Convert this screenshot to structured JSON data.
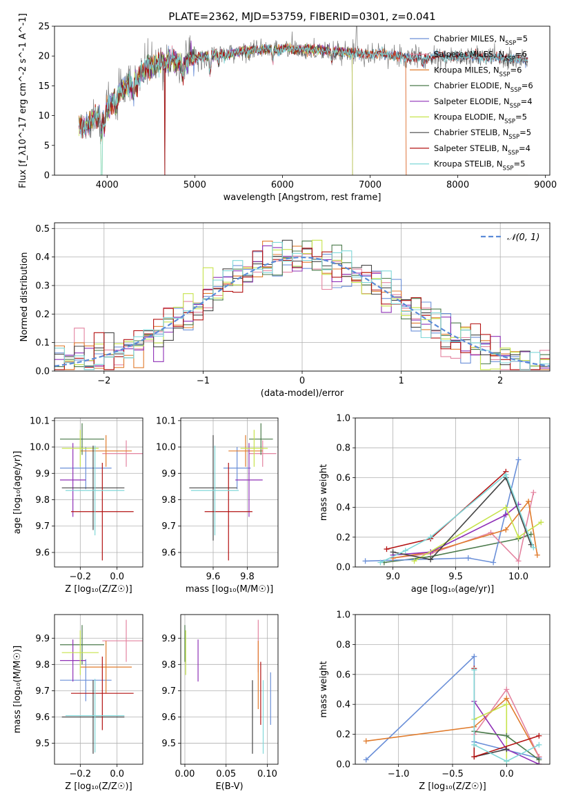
{
  "colors": {
    "Chabrier MILES": "#6a8fd8",
    "Salpeter MILES": "#e3829f",
    "Kroupa MILES": "#e07b2c",
    "Chabrier ELODIE": "#4a7a4a",
    "Salpeter ELODIE": "#8e2fb6",
    "Kroupa ELODIE": "#c6e34a",
    "Chabrier STELIB": "#444444",
    "Salpeter STELIB": "#b31010",
    "Kroupa STELIB": "#7fd7d8",
    "normal": "#5b8bd8",
    "grid": "#b0b0b0"
  },
  "chart_data": [
    {
      "id": "spectrum",
      "type": "line",
      "title": "PLATE=2362, MJD=53759, FIBERID=0301, z=0.041",
      "xlabel": "wavelength [Angstrom, rest frame]",
      "ylabel": "Flux [f_λ10^-17 erg cm^-2 s^-1 A^-1]",
      "xlim": [
        3400,
        9050
      ],
      "ylim": [
        0,
        25
      ],
      "xticks": [
        4000,
        5000,
        6000,
        7000,
        8000,
        9000
      ],
      "yticks": [
        0,
        5,
        10,
        15,
        20,
        25
      ],
      "grid": false,
      "legend_position": "top-right",
      "legend": [
        {
          "label": "Chabrier MILES, N",
          "sub": "SSP",
          "suffix": "=5"
        },
        {
          "label": "Salpeter MILES, N",
          "sub": "SSP",
          "suffix": "=6"
        },
        {
          "label": "Kroupa MILES, N",
          "sub": "SSP",
          "suffix": "=6"
        },
        {
          "label": "Chabrier ELODIE, N",
          "sub": "SSP",
          "suffix": "=6"
        },
        {
          "label": "Salpeter ELODIE, N",
          "sub": "SSP",
          "suffix": "=4"
        },
        {
          "label": "Kroupa ELODIE, N",
          "sub": "SSP",
          "suffix": "=5"
        },
        {
          "label": "Chabrier STELIB, N",
          "sub": "SSP",
          "suffix": "=5"
        },
        {
          "label": "Salpeter STELIB, N",
          "sub": "SSP",
          "suffix": "=4"
        },
        {
          "label": "Kroupa STELIB, N",
          "sub": "SSP",
          "suffix": "=5"
        }
      ],
      "continuum": [
        [
          3680,
          8.5
        ],
        [
          3750,
          8.0
        ],
        [
          3850,
          9.5
        ],
        [
          3950,
          10.5
        ],
        [
          4050,
          12.0
        ],
        [
          4150,
          14.0
        ],
        [
          4250,
          15.0
        ],
        [
          4350,
          16.5
        ],
        [
          4450,
          18.0
        ],
        [
          4550,
          18.5
        ],
        [
          4650,
          19.0
        ],
        [
          4750,
          19.5
        ],
        [
          4850,
          18.5
        ],
        [
          4950,
          19.5
        ],
        [
          5050,
          19.8
        ],
        [
          5150,
          20.0
        ],
        [
          5250,
          20.5
        ],
        [
          5350,
          20.0
        ],
        [
          5450,
          20.5
        ],
        [
          5550,
          20.8
        ],
        [
          5650,
          21.0
        ],
        [
          5750,
          21.0
        ],
        [
          5850,
          21.2
        ],
        [
          5950,
          21.0
        ],
        [
          6050,
          21.3
        ],
        [
          6150,
          21.0
        ],
        [
          6250,
          21.2
        ],
        [
          6350,
          21.0
        ],
        [
          6450,
          21.0
        ],
        [
          6550,
          20.8
        ],
        [
          6650,
          20.7
        ],
        [
          6750,
          20.5
        ],
        [
          6850,
          20.5
        ],
        [
          6950,
          20.3
        ],
        [
          7050,
          20.3
        ],
        [
          7150,
          20.5
        ],
        [
          7250,
          20.0
        ],
        [
          7350,
          20.0
        ],
        [
          7450,
          19.6
        ],
        [
          7550,
          19.8
        ],
        [
          7650,
          19.6
        ],
        [
          7750,
          20.3
        ],
        [
          7850,
          19.8
        ],
        [
          7950,
          19.8
        ],
        [
          8050,
          19.8
        ],
        [
          8150,
          20.0
        ],
        [
          8250,
          19.8
        ],
        [
          8350,
          19.9
        ],
        [
          8450,
          19.7
        ],
        [
          8550,
          19.5
        ],
        [
          8650,
          19.5
        ],
        [
          8800,
          19.3
        ]
      ]
    },
    {
      "id": "residuals",
      "type": "histogram",
      "xlabel": "(data-model)/error",
      "ylabel": "Normed distribution",
      "xlim": [
        -2.5,
        2.5
      ],
      "ylim": [
        0,
        0.52
      ],
      "xticks": [
        -2,
        -1,
        0,
        1,
        2
      ],
      "yticks": [
        0.0,
        0.1,
        0.2,
        0.3,
        0.4,
        0.5
      ],
      "grid": true,
      "bins": {
        "start": -2.5,
        "width": 0.1,
        "count": 50
      },
      "legend_position": "top-right",
      "legend": [
        {
          "label": "𝒩(0, 1)",
          "style": "dashed"
        }
      ],
      "reference_curve": "normal(0,1)"
    },
    {
      "id": "Z_age",
      "type": "errorbar",
      "xlabel": "Z [log₁₀(Z/Z☉)]",
      "ylabel": "age  [log₁₀(age/yr)]",
      "xlim": [
        -0.34,
        0.14
      ],
      "ylim": [
        9.545,
        10.11
      ],
      "xticks": [
        -0.2,
        0.0
      ],
      "yticks": [
        9.6,
        9.7,
        9.8,
        9.9,
        10.0,
        10.1
      ],
      "grid": true,
      "points": [
        {
          "model": "Chabrier MILES",
          "x": -0.17,
          "xerr": 0.14,
          "y": 9.92,
          "yerr": 0.08
        },
        {
          "model": "Salpeter MILES",
          "x": 0.05,
          "xerr": 0.13,
          "y": 9.975,
          "yerr": 0.05
        },
        {
          "model": "Kroupa MILES",
          "x": -0.06,
          "xerr": 0.14,
          "y": 9.985,
          "yerr": 0.06
        },
        {
          "model": "Chabrier ELODIE",
          "x": -0.19,
          "xerr": 0.12,
          "y": 10.03,
          "yerr": 0.06
        },
        {
          "model": "Salpeter ELODIE",
          "x": -0.24,
          "xerr": 0.07,
          "y": 9.875,
          "yerr": 0.14
        },
        {
          "model": "Kroupa ELODIE",
          "x": -0.2,
          "xerr": 0.1,
          "y": 9.995,
          "yerr": 0.07
        },
        {
          "model": "Chabrier STELIB",
          "x": -0.13,
          "xerr": 0.17,
          "y": 9.845,
          "yerr": 0.16
        },
        {
          "model": "Salpeter STELIB",
          "x": -0.08,
          "xerr": 0.17,
          "y": 9.755,
          "yerr": 0.185
        },
        {
          "model": "Kroupa STELIB",
          "x": -0.12,
          "xerr": 0.16,
          "y": 9.835,
          "yerr": 0.17
        }
      ]
    },
    {
      "id": "mass_age",
      "type": "errorbar",
      "xlabel": "mass [log₁₀(M/M☉)]",
      "ylabel": "",
      "xlim": [
        9.41,
        9.98
      ],
      "ylim": [
        9.545,
        10.11
      ],
      "xticks": [
        9.6,
        9.8
      ],
      "yticks": [
        9.6,
        9.7,
        9.8,
        9.9,
        10.0,
        10.1
      ],
      "grid": true,
      "points": [
        {
          "model": "Chabrier MILES",
          "x": 9.74,
          "xerr": 0.08,
          "y": 9.92,
          "yerr": 0.08
        },
        {
          "model": "Salpeter MILES",
          "x": 9.89,
          "xerr": 0.08,
          "y": 9.975,
          "yerr": 0.05
        },
        {
          "model": "Kroupa MILES",
          "x": 9.79,
          "xerr": 0.1,
          "y": 9.985,
          "yerr": 0.06
        },
        {
          "model": "Chabrier ELODIE",
          "x": 9.88,
          "xerr": 0.07,
          "y": 10.03,
          "yerr": 0.06
        },
        {
          "model": "Salpeter ELODIE",
          "x": 9.81,
          "xerr": 0.08,
          "y": 9.875,
          "yerr": 0.14
        },
        {
          "model": "Kroupa ELODIE",
          "x": 9.84,
          "xerr": 0.08,
          "y": 9.995,
          "yerr": 0.07
        },
        {
          "model": "Chabrier STELIB",
          "x": 9.6,
          "xerr": 0.14,
          "y": 9.845,
          "yerr": 0.2
        },
        {
          "model": "Salpeter STELIB",
          "x": 9.69,
          "xerr": 0.14,
          "y": 9.755,
          "yerr": 0.185
        },
        {
          "model": "Kroupa STELIB",
          "x": 9.61,
          "xerr": 0.14,
          "y": 9.835,
          "yerr": 0.17
        }
      ]
    },
    {
      "id": "age_weight",
      "type": "line",
      "xlabel": "age  [log₁₀(age/yr)]",
      "ylabel": "mass weight",
      "xlim": [
        8.7,
        10.25
      ],
      "ylim": [
        0,
        1.0
      ],
      "xticks": [
        9.0,
        9.5,
        10.0
      ],
      "yticks": [
        0.0,
        0.2,
        0.4,
        0.6,
        0.8,
        1.0
      ],
      "grid": true,
      "series": [
        {
          "model": "Chabrier ELODIE",
          "x": [
            8.93,
            9.3,
            10.0,
            10.1
          ],
          "y": [
            0.03,
            0.07,
            0.19,
            0.22
          ]
        },
        {
          "model": "Chabrier MILES",
          "x": [
            8.78,
            9.6,
            9.8,
            10.0
          ],
          "y": [
            0.04,
            0.06,
            0.03,
            0.72
          ]
        },
        {
          "model": "Salpeter MILES",
          "x": [
            9.0,
            9.3,
            9.78,
            10.0,
            10.12
          ],
          "y": [
            0.06,
            0.09,
            0.23,
            0.04,
            0.5
          ]
        },
        {
          "model": "Kroupa MILES",
          "x": [
            9.0,
            9.3,
            9.9,
            10.08,
            10.15
          ],
          "y": [
            0.06,
            0.1,
            0.25,
            0.44,
            0.08
          ]
        },
        {
          "model": "Salpeter ELODIE",
          "x": [
            9.0,
            9.3,
            9.9,
            10.0
          ],
          "y": [
            0.08,
            0.1,
            0.35,
            0.42
          ]
        },
        {
          "model": "Kroupa ELODIE",
          "x": [
            9.17,
            9.9,
            10.0,
            10.18
          ],
          "y": [
            0.04,
            0.4,
            0.2,
            0.3
          ]
        },
        {
          "model": "Chabrier STELIB",
          "x": [
            9.0,
            9.3,
            9.9,
            10.1
          ],
          "y": [
            0.1,
            0.05,
            0.6,
            0.15
          ]
        },
        {
          "model": "Salpeter STELIB",
          "x": [
            8.95,
            9.3,
            9.9
          ],
          "y": [
            0.12,
            0.19,
            0.64
          ]
        },
        {
          "model": "Kroupa STELIB",
          "x": [
            8.9,
            9.1,
            9.3,
            9.9,
            10.12
          ],
          "y": [
            0.03,
            0.11,
            0.2,
            0.62,
            0.13
          ]
        }
      ]
    },
    {
      "id": "Z_mass",
      "type": "errorbar",
      "xlabel": "Z [log₁₀(Z/Z☉)]",
      "ylabel": "mass [log₁₀(M/M☉)]",
      "xlim": [
        -0.34,
        0.14
      ],
      "ylim": [
        9.42,
        9.99
      ],
      "xticks": [
        -0.2,
        0.0
      ],
      "yticks": [
        9.5,
        9.6,
        9.7,
        9.8,
        9.9
      ],
      "grid": true,
      "points": [
        {
          "model": "Chabrier MILES",
          "x": -0.17,
          "xerr": 0.14,
          "y": 9.74,
          "yerr": 0.08
        },
        {
          "model": "Salpeter MILES",
          "x": 0.05,
          "xerr": 0.13,
          "y": 9.89,
          "yerr": 0.08
        },
        {
          "model": "Kroupa MILES",
          "x": -0.06,
          "xerr": 0.14,
          "y": 9.79,
          "yerr": 0.1
        },
        {
          "model": "Chabrier ELODIE",
          "x": -0.19,
          "xerr": 0.12,
          "y": 9.875,
          "yerr": 0.075
        },
        {
          "model": "Salpeter ELODIE",
          "x": -0.24,
          "xerr": 0.07,
          "y": 9.815,
          "yerr": 0.08
        },
        {
          "model": "Kroupa ELODIE",
          "x": -0.2,
          "xerr": 0.1,
          "y": 9.845,
          "yerr": 0.085
        },
        {
          "model": "Chabrier STELIB",
          "x": -0.13,
          "xerr": 0.17,
          "y": 9.6,
          "yerr": 0.14
        },
        {
          "model": "Salpeter STELIB",
          "x": -0.08,
          "xerr": 0.17,
          "y": 9.69,
          "yerr": 0.14
        },
        {
          "model": "Kroupa STELIB",
          "x": -0.12,
          "xerr": 0.16,
          "y": 9.605,
          "yerr": 0.14
        }
      ]
    },
    {
      "id": "EBV_mass",
      "type": "errorbar",
      "xlabel": "E(B-V)",
      "ylabel": "",
      "xlim": [
        -0.005,
        0.113
      ],
      "ylim": [
        9.42,
        9.99
      ],
      "xticks": [
        0.0,
        0.05,
        0.1
      ],
      "xticklabels": [
        "0.00",
        "0.05",
        "0.10"
      ],
      "yticks": [
        9.5,
        9.6,
        9.7,
        9.8,
        9.9
      ],
      "grid": true,
      "points": [
        {
          "model": "Chabrier MILES",
          "x": 0.104,
          "y": 9.67,
          "yerr": 0.1
        },
        {
          "model": "Salpeter MILES",
          "x": 0.089,
          "y": 9.87,
          "yerr": 0.1
        },
        {
          "model": "Kroupa MILES",
          "x": 0.089,
          "y": 9.76,
          "yerr": 0.13
        },
        {
          "model": "Chabrier ELODIE",
          "x": 0.0,
          "y": 9.88,
          "yerr": 0.07
        },
        {
          "model": "Salpeter ELODIE",
          "x": 0.016,
          "y": 9.815,
          "yerr": 0.08
        },
        {
          "model": "Kroupa ELODIE",
          "x": 0.001,
          "y": 9.845,
          "yerr": 0.085
        },
        {
          "model": "Chabrier STELIB",
          "x": 0.082,
          "y": 9.6,
          "yerr": 0.14
        },
        {
          "model": "Salpeter STELIB",
          "x": 0.092,
          "y": 9.69,
          "yerr": 0.12
        },
        {
          "model": "Kroupa STELIB",
          "x": 0.095,
          "y": 9.6,
          "yerr": 0.14
        }
      ]
    },
    {
      "id": "Z_weight",
      "type": "line",
      "xlabel": "Z [log₁₀(Z/Z☉)]",
      "ylabel": "mass weight",
      "xlim": [
        -1.4,
        0.4
      ],
      "ylim": [
        0,
        1.0
      ],
      "xticks": [
        -1.0,
        -0.5,
        0.0
      ],
      "yticks": [
        0.0,
        0.2,
        0.4,
        0.6,
        0.8,
        1.0
      ],
      "grid": true,
      "series": [
        {
          "model": "Chabrier MILES",
          "x": [
            -1.3,
            -0.3,
            -0.3,
            0.3
          ],
          "y": [
            0.03,
            0.72,
            0.15,
            0.04
          ]
        },
        {
          "model": "Kroupa MILES",
          "x": [
            -1.3,
            -0.3,
            0.0,
            0.3,
            0.3
          ],
          "y": [
            0.155,
            0.25,
            0.44,
            0.05,
            0.0
          ]
        },
        {
          "model": "Salpeter MILES",
          "x": [
            -0.3,
            0.0,
            0.3
          ],
          "y": [
            0.2,
            0.5,
            0.05
          ]
        },
        {
          "model": "Salpeter ELODIE",
          "x": [
            -0.3,
            0.0,
            0.3
          ],
          "y": [
            0.42,
            0.1,
            0.0
          ]
        },
        {
          "model": "Kroupa ELODIE",
          "x": [
            -0.3,
            0.0,
            0.0
          ],
          "y": [
            0.3,
            0.4,
            0.02
          ]
        },
        {
          "model": "Chabrier ELODIE",
          "x": [
            -0.3,
            0.0,
            0.3
          ],
          "y": [
            0.22,
            0.19,
            0.03
          ]
        },
        {
          "model": "Chabrier STELIB",
          "x": [
            -0.3,
            0.0
          ],
          "y": [
            0.05,
            0.1
          ]
        },
        {
          "model": "Salpeter STELIB",
          "x": [
            -0.3,
            -0.3,
            0.3
          ],
          "y": [
            0.64,
            0.05,
            0.19
          ]
        },
        {
          "model": "Kroupa STELIB",
          "x": [
            -0.3,
            -0.3,
            0.0,
            0.3
          ],
          "y": [
            0.63,
            0.13,
            0.02,
            0.13
          ]
        }
      ]
    }
  ]
}
